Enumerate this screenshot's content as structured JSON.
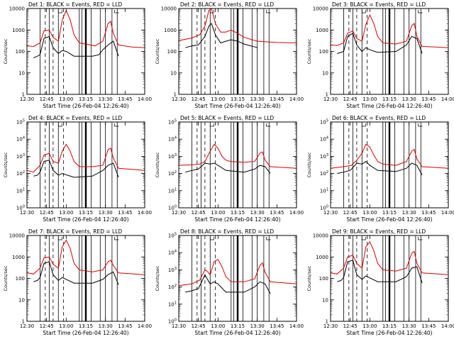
{
  "common": {
    "xlabel": "Start Time (26-Feb-04 12:26:40)",
    "ylabel": "Counts/sec",
    "x_ticks": [
      "12:30",
      "12:45",
      "13:00",
      "13:15",
      "13:30",
      "13:45",
      "14:00"
    ],
    "black_series": "Events",
    "red_series": "LLD",
    "colors": {
      "black": "#000000",
      "red": "#dd0000"
    }
  },
  "chart_data": [
    {
      "type": "line",
      "title": "Det 1: BLACK = Events, RED = LLD",
      "ylim": [
        1,
        10000
      ],
      "ytick_style": "plain",
      "red": [
        [
          0,
          180
        ],
        [
          5,
          170
        ],
        [
          10,
          250
        ],
        [
          13,
          900
        ],
        [
          17,
          1000
        ],
        [
          20,
          450
        ],
        [
          24,
          300
        ],
        [
          27,
          3000
        ],
        [
          30,
          8000
        ],
        [
          33,
          3000
        ],
        [
          36,
          600
        ],
        [
          40,
          250
        ],
        [
          45,
          220
        ],
        [
          52,
          180
        ],
        [
          58,
          300
        ],
        [
          62,
          2000
        ],
        [
          64,
          2500
        ],
        [
          66,
          700
        ],
        [
          70,
          200
        ],
        [
          80,
          160
        ],
        [
          90,
          150
        ]
      ],
      "black": [
        [
          5,
          50
        ],
        [
          8,
          60
        ],
        [
          10,
          70
        ],
        [
          13,
          400
        ],
        [
          17,
          500
        ],
        [
          20,
          150
        ],
        [
          24,
          80
        ],
        [
          27,
          110
        ],
        [
          30,
          100
        ],
        [
          36,
          60
        ],
        [
          50,
          60
        ],
        [
          55,
          70
        ],
        [
          58,
          120
        ],
        [
          62,
          200
        ],
        [
          66,
          300
        ],
        [
          70,
          60
        ]
      ]
    },
    {
      "type": "line",
      "title": "Det 2: BLACK = Events, RED = LLD",
      "ylim": [
        1,
        10000
      ],
      "ytick_style": "plain",
      "red": [
        [
          0,
          320
        ],
        [
          10,
          420
        ],
        [
          16,
          600
        ],
        [
          20,
          1500
        ],
        [
          23,
          8000
        ],
        [
          25,
          10000
        ],
        [
          28,
          2000
        ],
        [
          32,
          800
        ],
        [
          36,
          800
        ],
        [
          40,
          1000
        ],
        [
          45,
          700
        ],
        [
          50,
          450
        ],
        [
          60,
          300
        ],
        [
          75,
          260
        ],
        [
          90,
          250
        ]
      ],
      "black": [
        [
          5,
          150
        ],
        [
          10,
          180
        ],
        [
          15,
          200
        ],
        [
          20,
          500
        ],
        [
          23,
          1500
        ],
        [
          25,
          2000
        ],
        [
          28,
          600
        ],
        [
          32,
          250
        ],
        [
          36,
          300
        ],
        [
          40,
          350
        ],
        [
          45,
          300
        ],
        [
          50,
          220
        ],
        [
          60,
          150
        ]
      ]
    },
    {
      "type": "line",
      "title": "Det 3: BLACK = Events, RED = LLD",
      "ylim": [
        1,
        10000
      ],
      "ytick_style": "plain",
      "red": [
        [
          0,
          200
        ],
        [
          5,
          190
        ],
        [
          10,
          250
        ],
        [
          13,
          700
        ],
        [
          17,
          900
        ],
        [
          20,
          400
        ],
        [
          24,
          300
        ],
        [
          27,
          1800
        ],
        [
          30,
          5000
        ],
        [
          33,
          2000
        ],
        [
          36,
          500
        ],
        [
          40,
          250
        ],
        [
          50,
          220
        ],
        [
          58,
          300
        ],
        [
          62,
          1600
        ],
        [
          64,
          2000
        ],
        [
          66,
          500
        ],
        [
          70,
          170
        ],
        [
          80,
          160
        ],
        [
          90,
          150
        ]
      ],
      "black": [
        [
          5,
          80
        ],
        [
          8,
          90
        ],
        [
          10,
          100
        ],
        [
          13,
          500
        ],
        [
          17,
          700
        ],
        [
          20,
          200
        ],
        [
          24,
          100
        ],
        [
          27,
          150
        ],
        [
          30,
          120
        ],
        [
          36,
          90
        ],
        [
          50,
          100
        ],
        [
          58,
          200
        ],
        [
          62,
          500
        ],
        [
          66,
          400
        ],
        [
          70,
          80
        ]
      ]
    },
    {
      "type": "line",
      "title": "Det 4: BLACK = Events, RED = LLD",
      "ylim": [
        1,
        100000
      ],
      "ytick_style": "pow",
      "red": [
        [
          0,
          150
        ],
        [
          5,
          120
        ],
        [
          10,
          300
        ],
        [
          13,
          1200
        ],
        [
          17,
          1500
        ],
        [
          20,
          500
        ],
        [
          24,
          400
        ],
        [
          27,
          2000
        ],
        [
          30,
          5000
        ],
        [
          33,
          2000
        ],
        [
          36,
          500
        ],
        [
          40,
          250
        ],
        [
          50,
          250
        ],
        [
          58,
          300
        ],
        [
          62,
          2500
        ],
        [
          64,
          3000
        ],
        [
          66,
          800
        ],
        [
          70,
          200
        ],
        [
          90,
          150
        ]
      ],
      "black": [
        [
          5,
          70
        ],
        [
          8,
          80
        ],
        [
          10,
          120
        ],
        [
          13,
          500
        ],
        [
          17,
          600
        ],
        [
          20,
          150
        ],
        [
          24,
          80
        ],
        [
          27,
          100
        ],
        [
          36,
          60
        ],
        [
          50,
          70
        ],
        [
          58,
          150
        ],
        [
          62,
          300
        ],
        [
          66,
          400
        ],
        [
          70,
          60
        ]
      ]
    },
    {
      "type": "line",
      "title": "Det 5: BLACK = Events, RED = LLD",
      "ylim": [
        1,
        100000
      ],
      "ytick_style": "pow",
      "red": [
        [
          0,
          300
        ],
        [
          10,
          320
        ],
        [
          16,
          350
        ],
        [
          20,
          500
        ],
        [
          24,
          2000
        ],
        [
          27,
          5000
        ],
        [
          30,
          3000
        ],
        [
          33,
          1000
        ],
        [
          36,
          600
        ],
        [
          40,
          500
        ],
        [
          50,
          450
        ],
        [
          58,
          500
        ],
        [
          62,
          1500
        ],
        [
          64,
          1800
        ],
        [
          66,
          600
        ],
        [
          70,
          250
        ],
        [
          90,
          200
        ]
      ],
      "black": [
        [
          5,
          120
        ],
        [
          10,
          150
        ],
        [
          15,
          180
        ],
        [
          20,
          400
        ],
        [
          24,
          350
        ],
        [
          27,
          400
        ],
        [
          30,
          300
        ],
        [
          36,
          150
        ],
        [
          50,
          120
        ],
        [
          58,
          180
        ],
        [
          62,
          300
        ],
        [
          66,
          250
        ],
        [
          70,
          100
        ]
      ]
    },
    {
      "type": "line",
      "title": "Det 6: BLACK = Events, RED = LLD",
      "ylim": [
        1,
        100000
      ],
      "ytick_style": "pow",
      "red": [
        [
          0,
          200
        ],
        [
          10,
          250
        ],
        [
          16,
          300
        ],
        [
          20,
          600
        ],
        [
          24,
          1500
        ],
        [
          27,
          5000
        ],
        [
          30,
          3500
        ],
        [
          33,
          1200
        ],
        [
          36,
          500
        ],
        [
          40,
          350
        ],
        [
          50,
          300
        ],
        [
          58,
          500
        ],
        [
          62,
          2000
        ],
        [
          64,
          2500
        ],
        [
          66,
          700
        ],
        [
          70,
          250
        ],
        [
          90,
          200
        ]
      ],
      "black": [
        [
          5,
          100
        ],
        [
          10,
          120
        ],
        [
          15,
          150
        ],
        [
          20,
          400
        ],
        [
          24,
          350
        ],
        [
          27,
          500
        ],
        [
          30,
          300
        ],
        [
          36,
          150
        ],
        [
          50,
          130
        ],
        [
          58,
          200
        ],
        [
          62,
          400
        ],
        [
          66,
          300
        ],
        [
          70,
          80
        ]
      ]
    },
    {
      "type": "line",
      "title": "Det 7: BLACK = Events, RED = LLD",
      "ylim": [
        1,
        10000
      ],
      "ytick_style": "plain",
      "red": [
        [
          0,
          180
        ],
        [
          5,
          160
        ],
        [
          10,
          300
        ],
        [
          13,
          900
        ],
        [
          17,
          1000
        ],
        [
          20,
          450
        ],
        [
          24,
          300
        ],
        [
          27,
          3000
        ],
        [
          30,
          6000
        ],
        [
          33,
          2500
        ],
        [
          36,
          500
        ],
        [
          40,
          250
        ],
        [
          50,
          200
        ],
        [
          58,
          250
        ],
        [
          62,
          600
        ],
        [
          64,
          700
        ],
        [
          66,
          400
        ],
        [
          70,
          180
        ],
        [
          90,
          150
        ]
      ],
      "black": [
        [
          5,
          70
        ],
        [
          8,
          80
        ],
        [
          10,
          110
        ],
        [
          13,
          500
        ],
        [
          17,
          600
        ],
        [
          20,
          150
        ],
        [
          24,
          80
        ],
        [
          27,
          110
        ],
        [
          36,
          60
        ],
        [
          50,
          60
        ],
        [
          58,
          90
        ],
        [
          62,
          150
        ],
        [
          66,
          200
        ],
        [
          70,
          50
        ]
      ]
    },
    {
      "type": "line",
      "title": "Det 8: BLACK = Events, RED = LLD",
      "ylim": [
        1,
        100000
      ],
      "ytick_style": "pow",
      "red": [
        [
          0,
          120
        ],
        [
          10,
          150
        ],
        [
          16,
          250
        ],
        [
          20,
          1000
        ],
        [
          22,
          800
        ],
        [
          24,
          500
        ],
        [
          27,
          3000
        ],
        [
          30,
          4000
        ],
        [
          33,
          1500
        ],
        [
          36,
          400
        ],
        [
          40,
          200
        ],
        [
          50,
          200
        ],
        [
          58,
          300
        ],
        [
          62,
          1800
        ],
        [
          64,
          2500
        ],
        [
          66,
          700
        ],
        [
          70,
          200
        ],
        [
          90,
          150
        ]
      ],
      "black": [
        [
          5,
          50
        ],
        [
          10,
          60
        ],
        [
          15,
          80
        ],
        [
          20,
          500
        ],
        [
          24,
          150
        ],
        [
          27,
          200
        ],
        [
          30,
          150
        ],
        [
          36,
          50
        ],
        [
          50,
          50
        ],
        [
          58,
          100
        ],
        [
          62,
          200
        ],
        [
          66,
          150
        ],
        [
          70,
          40
        ]
      ]
    },
    {
      "type": "line",
      "title": "Det 9: BLACK = Events, RED = LLD",
      "ylim": [
        1,
        10000
      ],
      "ytick_style": "plain",
      "red": [
        [
          0,
          180
        ],
        [
          5,
          160
        ],
        [
          10,
          300
        ],
        [
          13,
          1000
        ],
        [
          17,
          1200
        ],
        [
          20,
          500
        ],
        [
          24,
          300
        ],
        [
          27,
          3000
        ],
        [
          30,
          5000
        ],
        [
          33,
          2000
        ],
        [
          36,
          500
        ],
        [
          40,
          250
        ],
        [
          50,
          220
        ],
        [
          58,
          300
        ],
        [
          62,
          1500
        ],
        [
          64,
          1800
        ],
        [
          66,
          500
        ],
        [
          70,
          180
        ],
        [
          90,
          150
        ]
      ],
      "black": [
        [
          5,
          70
        ],
        [
          8,
          80
        ],
        [
          10,
          110
        ],
        [
          13,
          600
        ],
        [
          17,
          700
        ],
        [
          20,
          150
        ],
        [
          24,
          90
        ],
        [
          27,
          130
        ],
        [
          36,
          70
        ],
        [
          50,
          70
        ],
        [
          58,
          120
        ],
        [
          62,
          300
        ],
        [
          66,
          350
        ],
        [
          70,
          60
        ]
      ]
    }
  ]
}
